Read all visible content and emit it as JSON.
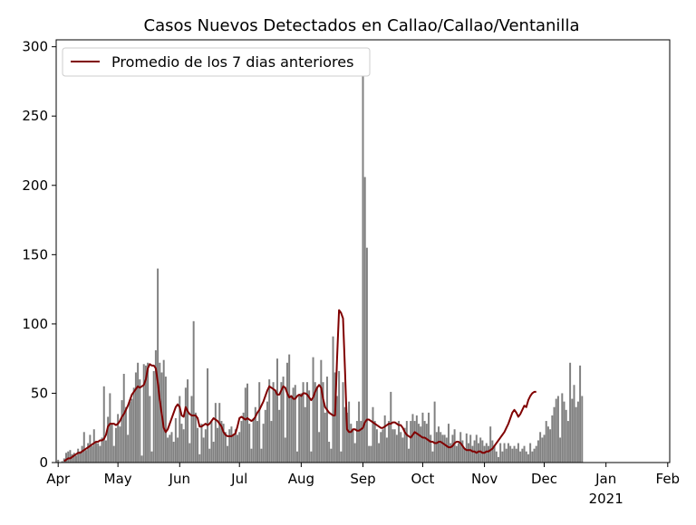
{
  "chart_data": {
    "type": "bar",
    "title": "Casos Nuevos Detectados en Callao/Callao/Ventanilla",
    "xlabel": "",
    "ylabel": "",
    "ylim": [
      0,
      305
    ],
    "yticks": [
      0,
      50,
      100,
      150,
      200,
      250,
      300
    ],
    "xlim": [
      "2020-03-31",
      "2021-02-02"
    ],
    "xticks": [
      {
        "label": "Apr",
        "date": "2020-04-01"
      },
      {
        "label": "May",
        "date": "2020-05-01"
      },
      {
        "label": "Jun",
        "date": "2020-06-01"
      },
      {
        "label": "Jul",
        "date": "2020-07-01"
      },
      {
        "label": "Aug",
        "date": "2020-08-01"
      },
      {
        "label": "Sep",
        "date": "2020-09-01"
      },
      {
        "label": "Oct",
        "date": "2020-10-01"
      },
      {
        "label": "Nov",
        "date": "2020-11-01"
      },
      {
        "label": "Dec",
        "date": "2020-12-01"
      },
      {
        "label": "Jan",
        "date": "2021-01-01"
      },
      {
        "label": "Feb",
        "date": "2021-02-01"
      }
    ],
    "xtick_year_label": "2021",
    "grid": false,
    "legend_position": "top-left",
    "bar_color": "#808080",
    "line_color": "#800000",
    "series": [
      {
        "name": "",
        "kind": "bar",
        "start_date": "2020-04-01",
        "values": [
          2,
          0,
          1,
          3,
          7,
          8,
          9,
          6,
          7,
          5,
          10,
          8,
          12,
          22,
          9,
          14,
          20,
          12,
          24,
          15,
          14,
          12,
          18,
          55,
          16,
          33,
          50,
          28,
          12,
          25,
          35,
          26,
          45,
          64,
          40,
          20,
          44,
          46,
          54,
          65,
          72,
          60,
          5,
          71,
          70,
          72,
          48,
          8,
          66,
          81,
          140,
          72,
          65,
          74,
          62,
          18,
          20,
          22,
          15,
          32,
          18,
          48,
          28,
          24,
          54,
          60,
          14,
          48,
          102,
          36,
          25,
          6,
          28,
          18,
          24,
          68,
          10,
          30,
          15,
          43,
          25,
          43,
          30,
          28,
          22,
          12,
          24,
          26,
          20,
          24,
          20,
          22,
          30,
          36,
          54,
          57,
          28,
          10,
          32,
          40,
          30,
          58,
          10,
          28,
          38,
          44,
          60,
          30,
          58,
          52,
          75,
          38,
          58,
          62,
          18,
          72,
          78,
          48,
          54,
          56,
          8,
          48,
          50,
          58,
          40,
          58,
          52,
          8,
          76,
          58,
          55,
          22,
          74,
          58,
          36,
          62,
          15,
          10,
          91,
          65,
          48,
          66,
          8,
          58,
          40,
          36,
          44,
          28,
          24,
          14,
          30,
          44,
          30,
          290,
          206,
          155,
          12,
          12,
          40,
          30,
          24,
          14,
          22,
          24,
          34,
          18,
          30,
          51,
          24,
          24,
          20,
          30,
          22,
          18,
          25,
          30,
          10,
          30,
          35,
          30,
          34,
          28,
          26,
          36,
          30,
          28,
          36,
          20,
          8,
          44,
          22,
          26,
          22,
          20,
          20,
          18,
          28,
          14,
          20,
          24,
          12,
          14,
          22,
          16,
          10,
          21,
          14,
          20,
          12,
          16,
          20,
          14,
          18,
          16,
          12,
          14,
          12,
          26,
          16,
          12,
          8,
          4,
          14,
          8,
          14,
          10,
          14,
          12,
          10,
          12,
          10,
          14,
          8,
          10,
          12,
          8,
          6,
          14,
          8,
          10,
          12,
          16,
          22,
          18,
          20,
          30,
          26,
          24,
          34,
          40,
          46,
          48,
          18,
          50,
          44,
          38,
          30,
          72,
          46,
          56,
          40,
          44,
          70,
          48
        ]
      },
      {
        "name": "Promedio de los 7 dias anteriores",
        "kind": "line",
        "start_date": "2020-04-04",
        "values": [
          1,
          2,
          3,
          3,
          4,
          5,
          6,
          7,
          7,
          8,
          9,
          10,
          11,
          12,
          13,
          14,
          15,
          15,
          16,
          16,
          17,
          20,
          26,
          28,
          28,
          28,
          27,
          28,
          30,
          33,
          35,
          38,
          41,
          45,
          49,
          51,
          53,
          55,
          54,
          55,
          56,
          60,
          68,
          71,
          70,
          70,
          68,
          58,
          45,
          35,
          25,
          22,
          24,
          28,
          32,
          36,
          40,
          42,
          40,
          34,
          33,
          40,
          37,
          35,
          34,
          34,
          34,
          32,
          26,
          26,
          27,
          28,
          27,
          28,
          30,
          32,
          31,
          30,
          28,
          26,
          22,
          20,
          19,
          19,
          19,
          20,
          21,
          26,
          32,
          33,
          32,
          31,
          32,
          31,
          30,
          31,
          33,
          36,
          38,
          41,
          44,
          48,
          52,
          55,
          54,
          53,
          52,
          49,
          49,
          52,
          55,
          54,
          50,
          47,
          48,
          46,
          46,
          48,
          49,
          48,
          50,
          50,
          49,
          47,
          45,
          47,
          51,
          54,
          56,
          54,
          46,
          40,
          38,
          36,
          35,
          34,
          34,
          75,
          110,
          108,
          104,
          66,
          24,
          22,
          22,
          24,
          24,
          23,
          23,
          24,
          25,
          29,
          31,
          31,
          30,
          29,
          28,
          27,
          26,
          25,
          25,
          26,
          27,
          28,
          28,
          29,
          29,
          28,
          27,
          27,
          25,
          22,
          20,
          19,
          18,
          20,
          22,
          21,
          20,
          19,
          18,
          18,
          17,
          16,
          15,
          15,
          14,
          14,
          15,
          15,
          14,
          13,
          12,
          11,
          11,
          12,
          14,
          15,
          15,
          14,
          12,
          10,
          9,
          9,
          9,
          8,
          8,
          7,
          8,
          8,
          7,
          7,
          8,
          8,
          9,
          10,
          12,
          14,
          16,
          18,
          20,
          22,
          25,
          28,
          32,
          36,
          38,
          36,
          33,
          35,
          38,
          41,
          40,
          45,
          48,
          50,
          51,
          51
        ]
      }
    ]
  }
}
